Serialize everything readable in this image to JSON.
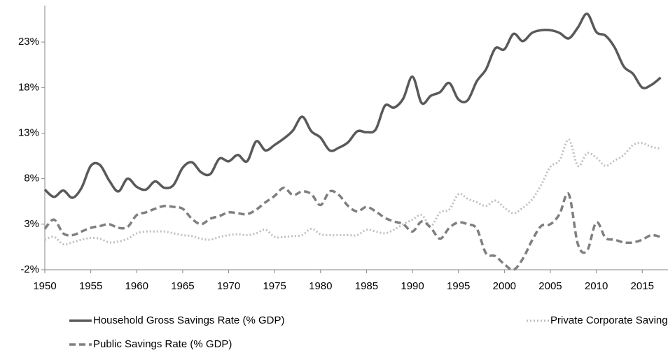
{
  "chart_data": {
    "type": "line",
    "x": [
      1950,
      1951,
      1952,
      1953,
      1954,
      1955,
      1956,
      1957,
      1958,
      1959,
      1960,
      1961,
      1962,
      1963,
      1964,
      1965,
      1966,
      1967,
      1968,
      1969,
      1970,
      1971,
      1972,
      1973,
      1974,
      1975,
      1976,
      1977,
      1978,
      1979,
      1980,
      1981,
      1982,
      1983,
      1984,
      1985,
      1986,
      1987,
      1988,
      1989,
      1990,
      1991,
      1992,
      1993,
      1994,
      1995,
      1996,
      1997,
      1998,
      1999,
      2000,
      2001,
      2002,
      2003,
      2004,
      2005,
      2006,
      2007,
      2008,
      2009,
      2010,
      2011,
      2012,
      2013,
      2014,
      2015,
      2016,
      2017
    ],
    "series": [
      {
        "name": "Household Gross Savings Rate (% GDP)",
        "color": "#595959",
        "dash": "solid",
        "values": [
          6.8,
          6.0,
          6.7,
          5.9,
          7.0,
          9.4,
          9.5,
          7.8,
          6.6,
          8.0,
          7.1,
          6.8,
          7.7,
          7.0,
          7.3,
          9.2,
          9.8,
          8.7,
          8.5,
          10.2,
          9.9,
          10.6,
          9.9,
          12.1,
          11.1,
          11.7,
          12.4,
          13.3,
          14.8,
          13.2,
          12.5,
          11.1,
          11.4,
          12.0,
          13.2,
          13.1,
          13.4,
          16.0,
          15.8,
          16.8,
          19.2,
          16.3,
          17.1,
          17.5,
          18.5,
          16.7,
          16.6,
          18.7,
          20.0,
          22.3,
          22.2,
          23.9,
          23.1,
          24.0,
          24.3,
          24.3,
          24.0,
          23.4,
          24.6,
          26.1,
          24.1,
          23.7,
          22.4,
          20.3,
          19.5,
          18.0,
          18.3,
          19.1
        ]
      },
      {
        "name": "Private Corporate Savings Rate (% GDP)",
        "color": "#bfbfbf",
        "dash": "dotted",
        "values": [
          1.3,
          1.6,
          0.8,
          1.0,
          1.3,
          1.5,
          1.4,
          1.0,
          1.1,
          1.4,
          2.0,
          2.2,
          2.2,
          2.2,
          2.0,
          1.8,
          1.7,
          1.4,
          1.3,
          1.6,
          1.8,
          1.9,
          1.8,
          2.0,
          2.4,
          1.6,
          1.6,
          1.7,
          1.8,
          2.5,
          1.9,
          1.8,
          1.8,
          1.8,
          1.8,
          2.4,
          2.2,
          2.0,
          2.4,
          3.0,
          3.5,
          4.0,
          2.8,
          4.3,
          4.6,
          6.3,
          5.8,
          5.4,
          5.0,
          5.6,
          4.8,
          4.2,
          4.8,
          5.7,
          7.3,
          9.3,
          10.0,
          12.3,
          9.4,
          10.8,
          10.3,
          9.4,
          10.0,
          10.6,
          11.7,
          11.9,
          11.5,
          11.3
        ]
      },
      {
        "name": "Public Savings Rate (% GDP)",
        "color": "#7f7f7f",
        "dash": "dashed",
        "values": [
          2.5,
          3.5,
          2.0,
          1.8,
          2.2,
          2.6,
          2.8,
          3.0,
          2.6,
          2.7,
          4.0,
          4.3,
          4.7,
          5.0,
          4.9,
          4.7,
          3.6,
          3.0,
          3.6,
          3.9,
          4.3,
          4.2,
          4.1,
          4.6,
          5.4,
          6.1,
          7.0,
          6.2,
          6.6,
          6.3,
          5.1,
          6.6,
          6.2,
          5.0,
          4.4,
          4.9,
          4.4,
          3.7,
          3.3,
          3.0,
          2.2,
          3.3,
          2.6,
          1.4,
          2.6,
          3.2,
          3.0,
          2.5,
          -0.2,
          -0.5,
          -1.4,
          -2.0,
          -0.8,
          1.2,
          2.8,
          3.0,
          4.1,
          6.3,
          0.8,
          0.1,
          3.2,
          1.5,
          1.3,
          1.0,
          1.0,
          1.3,
          1.8,
          1.6
        ]
      }
    ],
    "xlim": [
      1950,
      2017.8
    ],
    "xticks": [
      1950,
      1955,
      1960,
      1965,
      1970,
      1975,
      1980,
      1985,
      1990,
      1995,
      2000,
      2005,
      2010,
      2015
    ],
    "ylim": [
      -2,
      27
    ],
    "yticks": [
      {
        "value": -2,
        "label": "-2%"
      },
      {
        "value": 3,
        "label": "3%"
      },
      {
        "value": 8,
        "label": "8%"
      },
      {
        "value": 13,
        "label": "13%"
      },
      {
        "value": 18,
        "label": "18%"
      },
      {
        "value": 23,
        "label": "23%"
      }
    ],
    "grid": false,
    "legend": "bottom"
  }
}
